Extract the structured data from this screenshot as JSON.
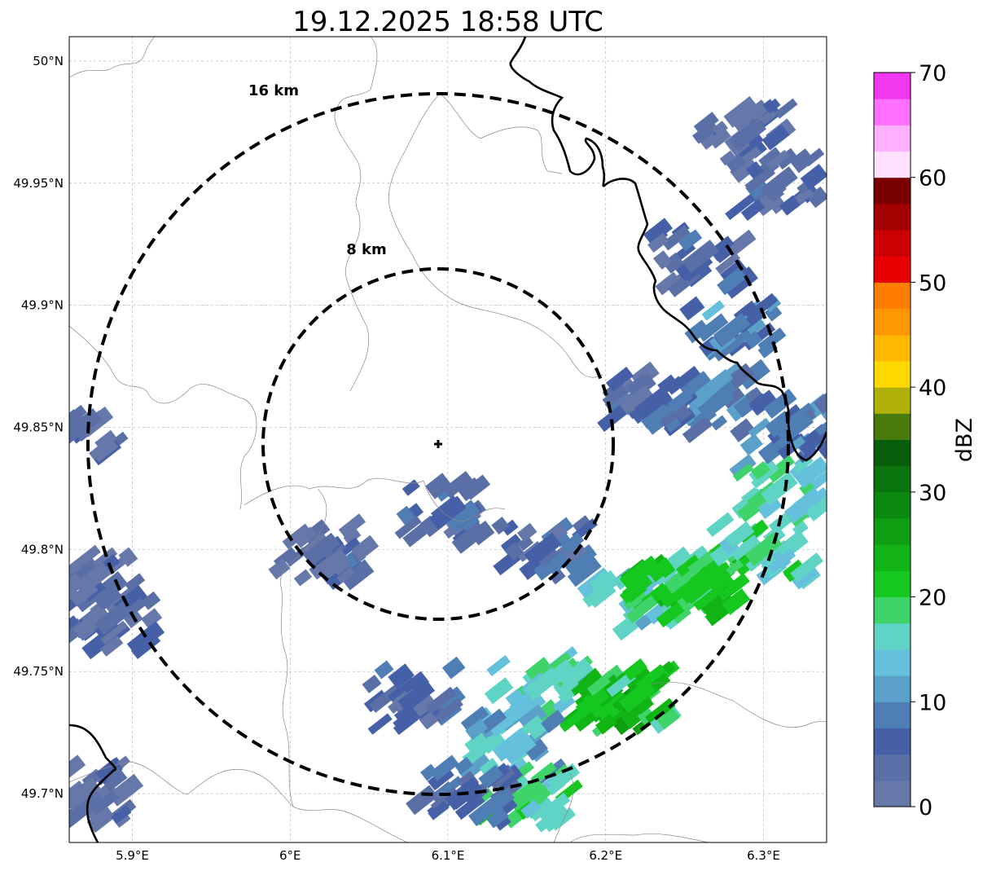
{
  "title": "19.12.2025 18:58 UTC",
  "map": {
    "lon_range": [
      5.86,
      6.34
    ],
    "lat_range": [
      49.68,
      50.01
    ],
    "lon_ticks": [
      {
        "value": 5.9,
        "label": "5.9°E"
      },
      {
        "value": 6.0,
        "label": "6°E"
      },
      {
        "value": 6.1,
        "label": "6.1°E"
      },
      {
        "value": 6.2,
        "label": "6.2°E"
      },
      {
        "value": 6.3,
        "label": "6.3°E"
      }
    ],
    "lat_ticks": [
      {
        "value": 50.0,
        "label": "50°N"
      },
      {
        "value": 49.95,
        "label": "49.95°N"
      },
      {
        "value": 49.9,
        "label": "49.9°N"
      },
      {
        "value": 49.85,
        "label": "49.85°N"
      },
      {
        "value": 49.8,
        "label": "49.8°N"
      },
      {
        "value": 49.75,
        "label": "49.75°N"
      },
      {
        "value": 49.7,
        "label": "49.7°N"
      }
    ],
    "grid": true,
    "radar_site": {
      "lon": 6.094,
      "lat": 49.843
    },
    "range_rings": [
      {
        "label": "8 km",
        "radius_km": 8
      },
      {
        "label": "16 km",
        "radius_km": 16
      }
    ]
  },
  "colorbar": {
    "label": "dBZ",
    "min": 0,
    "max": 70,
    "step": 2.5,
    "ticks": [
      {
        "value": 0,
        "label": "0"
      },
      {
        "value": 10,
        "label": "10"
      },
      {
        "value": 20,
        "label": "20"
      },
      {
        "value": 30,
        "label": "30"
      },
      {
        "value": 40,
        "label": "40"
      },
      {
        "value": 50,
        "label": "50"
      },
      {
        "value": 60,
        "label": "60"
      },
      {
        "value": 70,
        "label": "70"
      }
    ],
    "colors": [
      "#6677aa",
      "#5a6fa6",
      "#4660a8",
      "#4f7eb5",
      "#5aa0c9",
      "#65c0dc",
      "#5fd4c4",
      "#3fd46a",
      "#15c81f",
      "#10b515",
      "#0f9e12",
      "#0c8a0f",
      "#0a760d",
      "#085e0a",
      "#4a7a0c",
      "#b0b00a",
      "#ffd800",
      "#ffb800",
      "#ff9800",
      "#ff7e00",
      "#e80000",
      "#cc0000",
      "#a40000",
      "#7a0000",
      "#ffe0ff",
      "#ffb0ff",
      "#ff70ff",
      "#f038f0"
    ]
  },
  "chart_data": {
    "type": "heatmap",
    "title": "19.12.2025 18:58 UTC",
    "xlabel": "",
    "ylabel": "",
    "x_range": [
      5.86,
      6.34
    ],
    "y_range": [
      49.68,
      50.01
    ],
    "value_label": "dBZ",
    "value_range": [
      0,
      70
    ],
    "reflectivity_cells": [
      {
        "lon": 5.875,
        "lat": 49.788,
        "dbz": 2
      },
      {
        "lon": 5.888,
        "lat": 49.772,
        "dbz": 3
      },
      {
        "lon": 5.868,
        "lat": 49.7,
        "dbz": 2
      },
      {
        "lon": 5.862,
        "lat": 49.848,
        "dbz": 3
      },
      {
        "lon": 6.02,
        "lat": 49.8,
        "dbz": 4
      },
      {
        "lon": 6.1,
        "lat": 49.815,
        "dbz": 5
      },
      {
        "lon": 6.16,
        "lat": 49.8,
        "dbz": 6
      },
      {
        "lon": 6.22,
        "lat": 49.78,
        "dbz": 14
      },
      {
        "lon": 6.245,
        "lat": 49.783,
        "dbz": 22
      },
      {
        "lon": 6.265,
        "lat": 49.79,
        "dbz": 20
      },
      {
        "lon": 6.3,
        "lat": 49.8,
        "dbz": 18
      },
      {
        "lon": 6.31,
        "lat": 49.825,
        "dbz": 16
      },
      {
        "lon": 6.2,
        "lat": 49.738,
        "dbz": 22
      },
      {
        "lon": 6.22,
        "lat": 49.74,
        "dbz": 21
      },
      {
        "lon": 6.16,
        "lat": 49.745,
        "dbz": 16
      },
      {
        "lon": 6.14,
        "lat": 49.72,
        "dbz": 13
      },
      {
        "lon": 6.15,
        "lat": 49.7,
        "dbz": 18
      },
      {
        "lon": 6.11,
        "lat": 49.7,
        "dbz": 6
      },
      {
        "lon": 6.08,
        "lat": 49.74,
        "dbz": 5
      },
      {
        "lon": 6.23,
        "lat": 49.86,
        "dbz": 6
      },
      {
        "lon": 6.27,
        "lat": 49.86,
        "dbz": 8
      },
      {
        "lon": 6.28,
        "lat": 49.89,
        "dbz": 9
      },
      {
        "lon": 6.26,
        "lat": 49.92,
        "dbz": 4
      },
      {
        "lon": 6.31,
        "lat": 49.95,
        "dbz": 4
      },
      {
        "lon": 6.29,
        "lat": 49.97,
        "dbz": 3
      },
      {
        "lon": 6.32,
        "lat": 49.85,
        "dbz": 8
      }
    ]
  }
}
